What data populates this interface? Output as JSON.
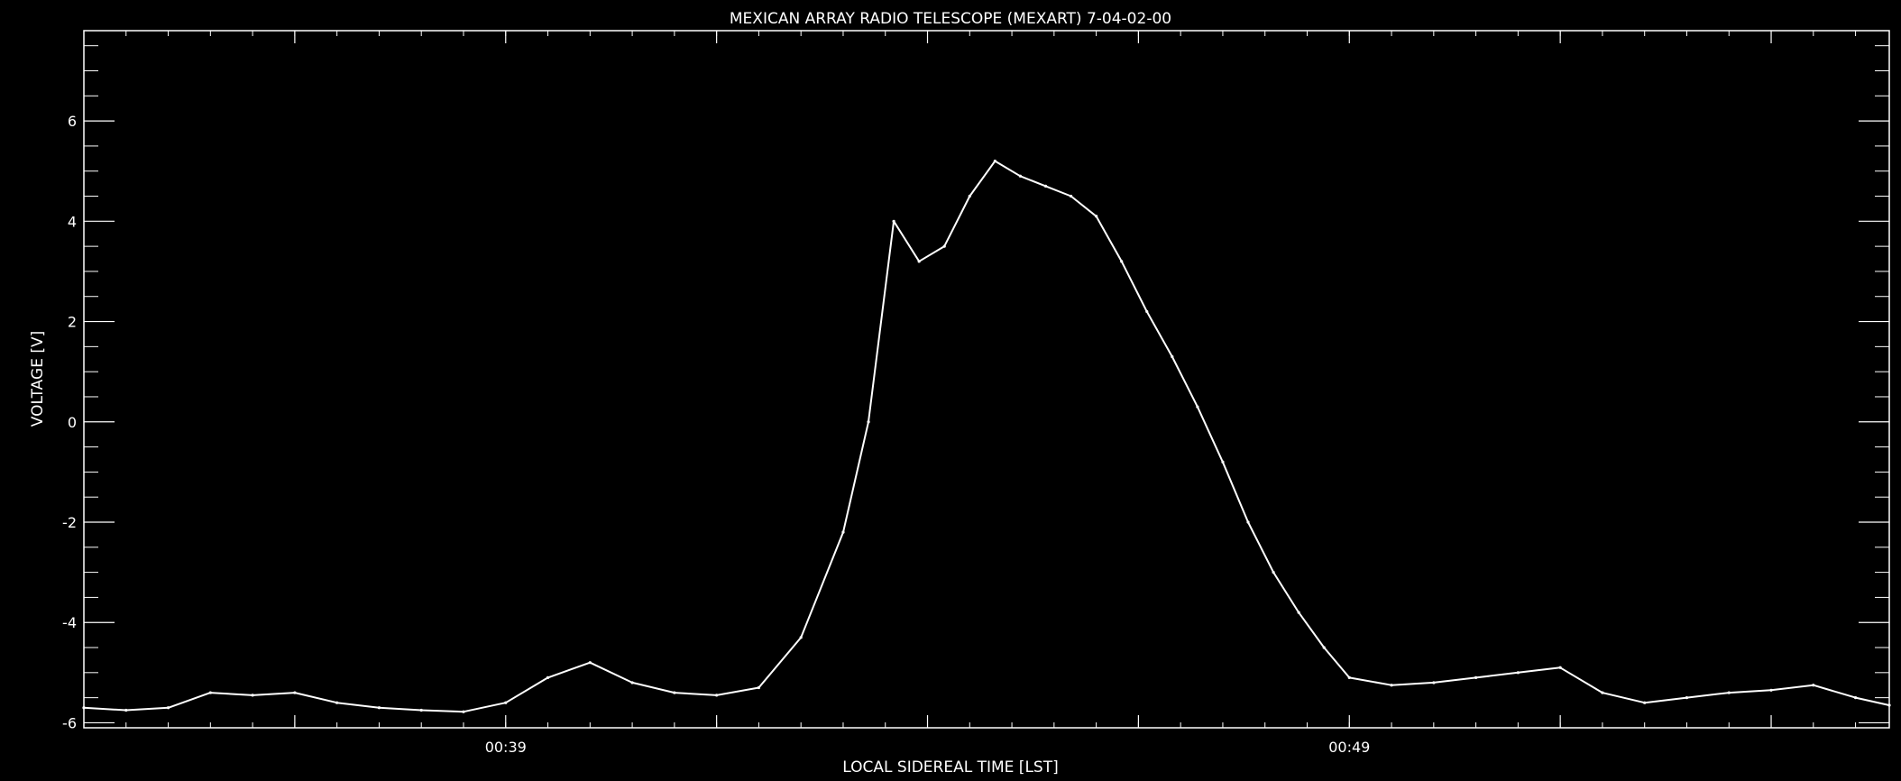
{
  "chart_data": {
    "type": "line",
    "title": "MEXICAN ARRAY RADIO TELESCOPE  (MEXART)  7-04-02-00",
    "xlabel": "LOCAL SIDEREAL TIME [LST]",
    "ylabel": "VOLTAGE [V]",
    "x_unit": "minutes LST",
    "xlim": [
      34,
      55.4
    ],
    "ylim": [
      -6.1,
      7.8
    ],
    "x_ticks": [
      {
        "value": 39,
        "label": "00:39"
      },
      {
        "value": 49,
        "label": "00:49"
      }
    ],
    "y_ticks": [
      {
        "value": -6,
        "label": "-6"
      },
      {
        "value": -4,
        "label": "-4"
      },
      {
        "value": -2,
        "label": "-2"
      },
      {
        "value": 0,
        "label": "0"
      },
      {
        "value": 2,
        "label": "2"
      },
      {
        "value": 4,
        "label": "4"
      },
      {
        "value": 6,
        "label": "6"
      }
    ],
    "series": [
      {
        "color": "#ffffff",
        "x": [
          34.0,
          34.5,
          35.0,
          35.5,
          36.0,
          36.5,
          37.0,
          37.5,
          38.0,
          38.5,
          39.0,
          39.5,
          40.0,
          40.5,
          41.0,
          41.5,
          42.0,
          42.5,
          43.0,
          43.3,
          43.6,
          43.9,
          44.2,
          44.5,
          44.8,
          45.1,
          45.4,
          45.7,
          46.0,
          46.3,
          46.6,
          46.9,
          47.2,
          47.5,
          47.8,
          48.1,
          48.4,
          48.7,
          49.0,
          49.5,
          50.0,
          50.5,
          51.0,
          51.5,
          52.0,
          52.5,
          53.0,
          53.5,
          54.0,
          54.5,
          55.0,
          55.4
        ],
        "y": [
          -5.7,
          -5.75,
          -5.7,
          -5.4,
          -5.45,
          -5.4,
          -5.6,
          -5.7,
          -5.75,
          -5.78,
          -5.6,
          -5.1,
          -4.8,
          -5.2,
          -5.4,
          -5.45,
          -5.3,
          -4.3,
          -2.2,
          0.0,
          4.0,
          3.2,
          3.5,
          4.5,
          5.2,
          4.9,
          4.7,
          4.5,
          4.1,
          3.2,
          2.2,
          1.3,
          0.3,
          -0.8,
          -2.0,
          -3.0,
          -3.8,
          -4.5,
          -5.1,
          -5.25,
          -5.2,
          -5.1,
          -5.0,
          -4.9,
          -5.4,
          -5.6,
          -5.5,
          -5.4,
          -5.35,
          -5.25,
          -5.5,
          -5.65
        ]
      }
    ],
    "grid": false,
    "legend": "none"
  }
}
